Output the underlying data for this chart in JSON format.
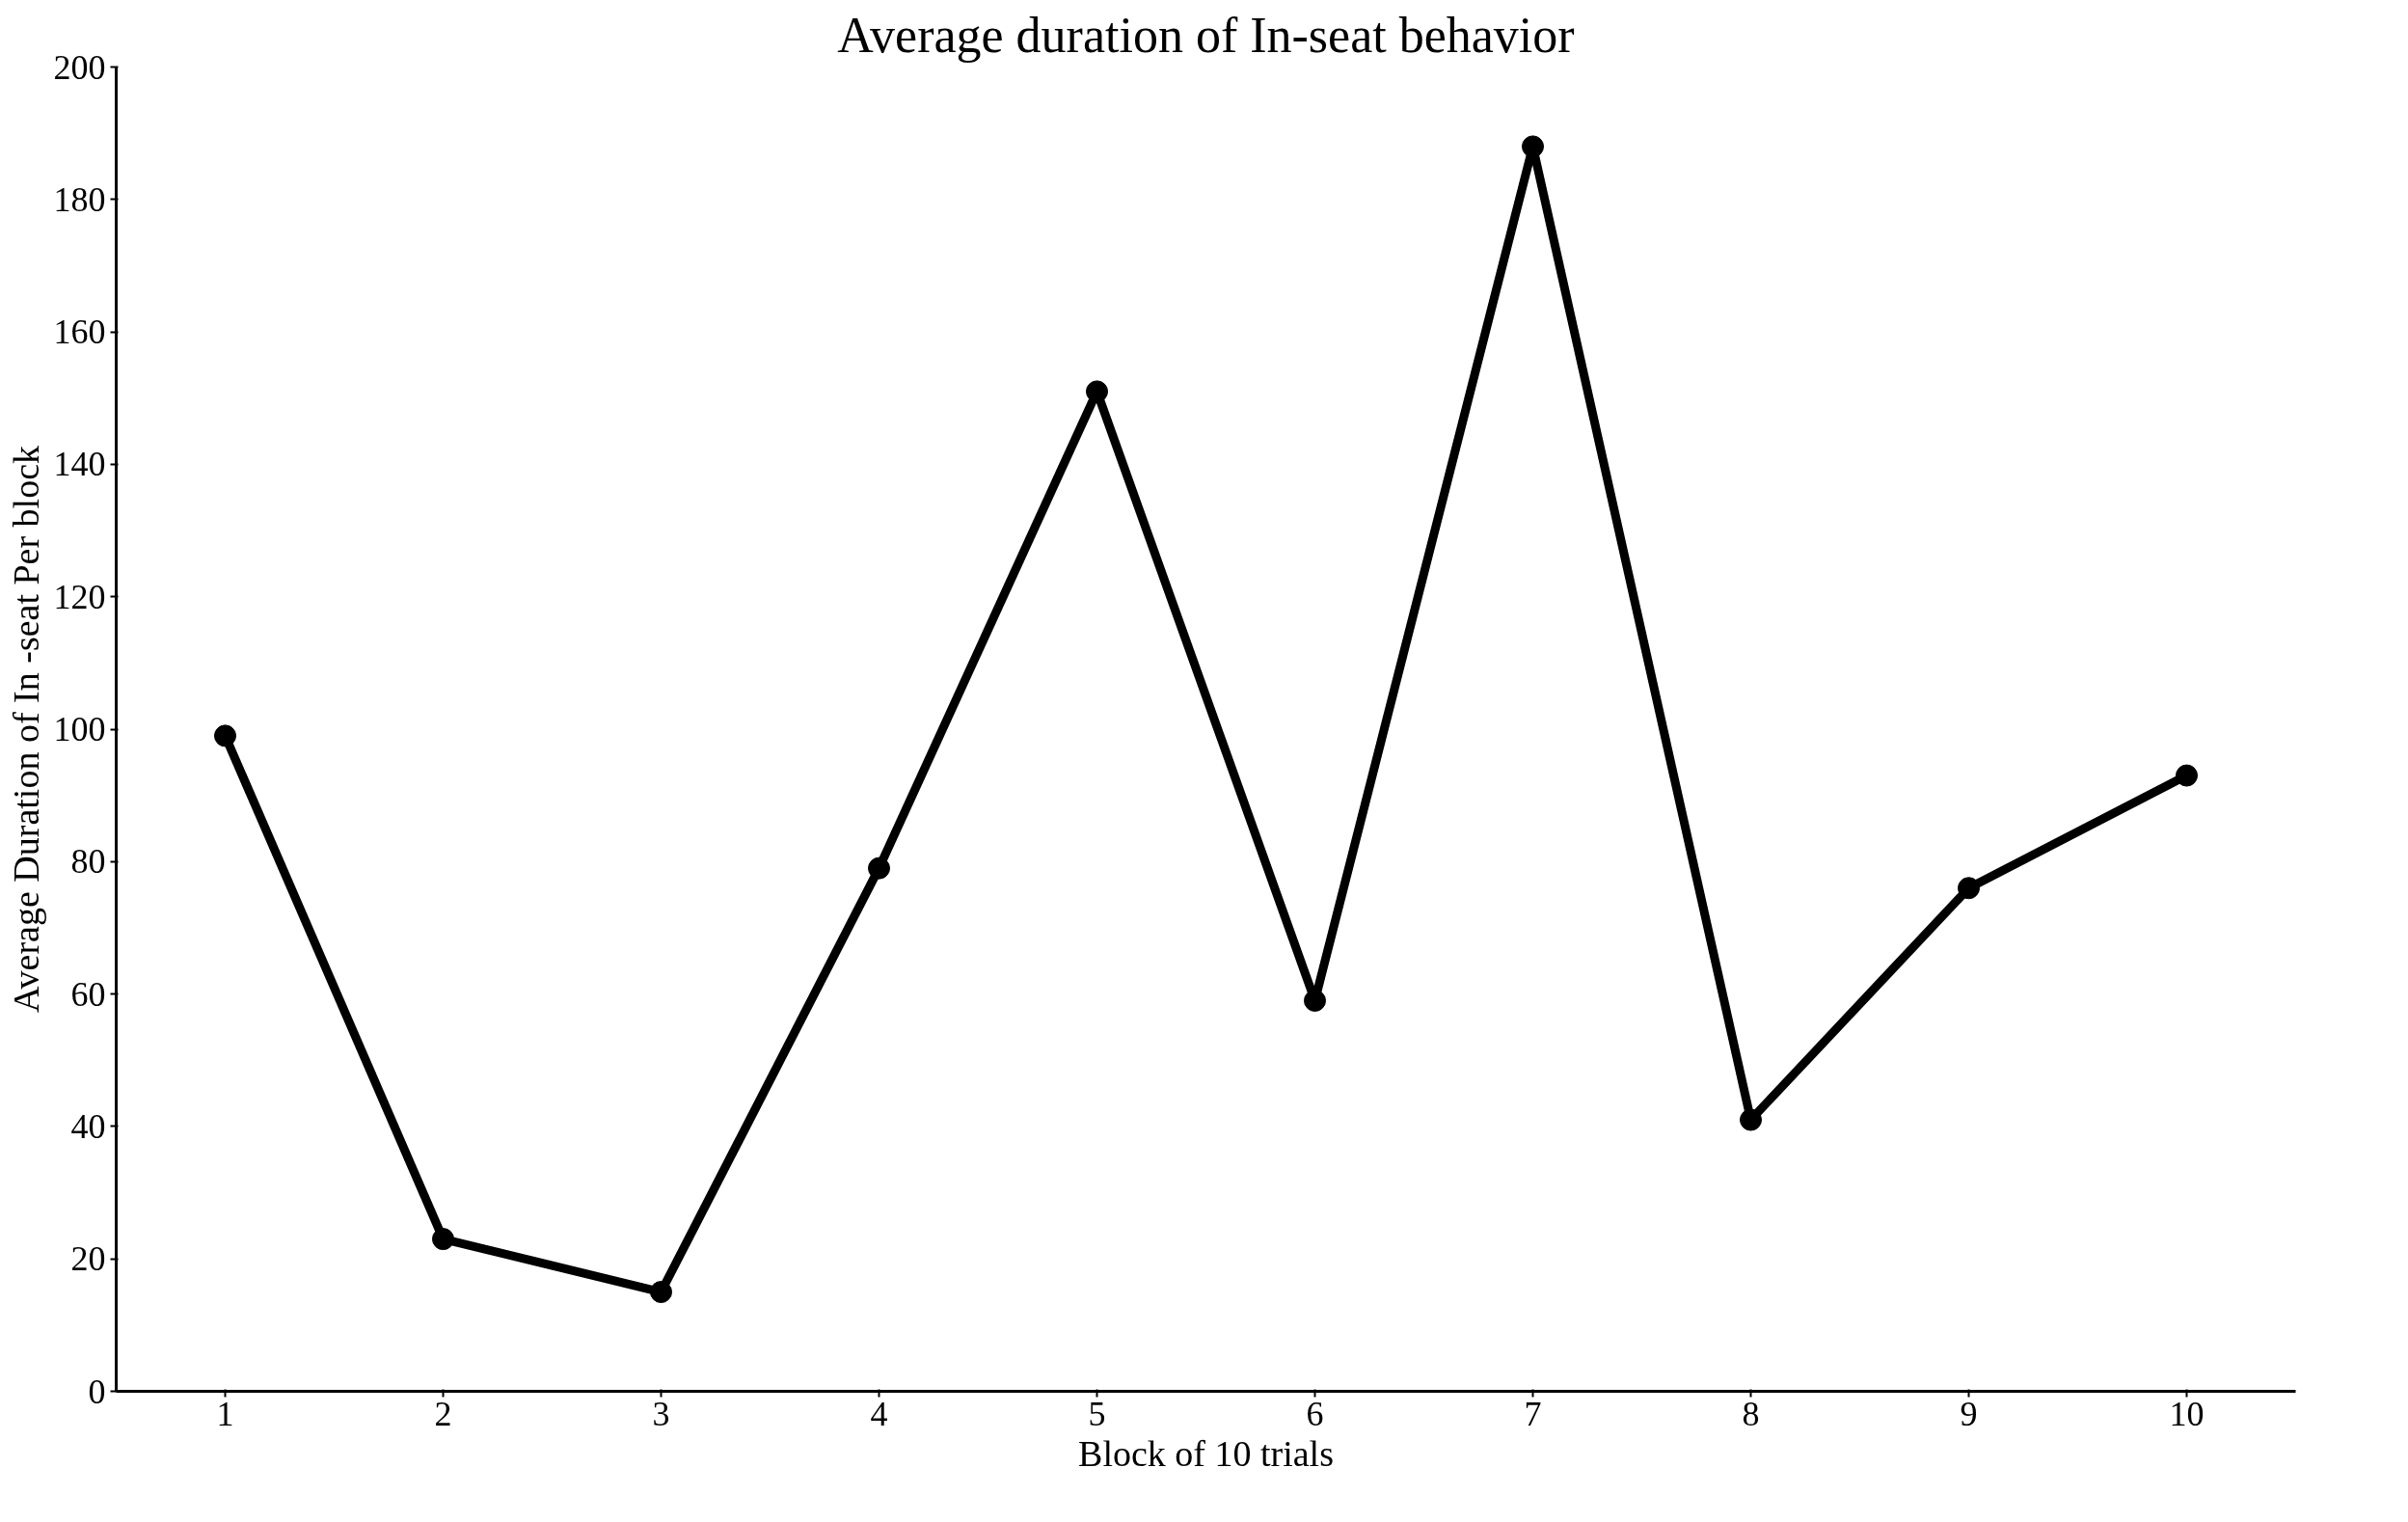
{
  "chart_data": {
    "type": "line",
    "title": "Average duration of In-seat behavior",
    "xlabel": "Block of 10 trials",
    "ylabel": "Average Duration of In -seat Per block",
    "categories": [
      "1",
      "2",
      "3",
      "4",
      "5",
      "6",
      "7",
      "8",
      "9",
      "10"
    ],
    "series": [
      {
        "color": "#000000",
        "values": [
          99,
          23,
          15,
          79,
          151,
          59,
          188,
          41,
          76,
          93
        ]
      }
    ],
    "ylim": [
      0,
      200
    ],
    "yticks": [
      0,
      20,
      40,
      60,
      80,
      100,
      120,
      140,
      160,
      180,
      200
    ],
    "grid": false,
    "marker": "circle",
    "line_style": "solid"
  }
}
